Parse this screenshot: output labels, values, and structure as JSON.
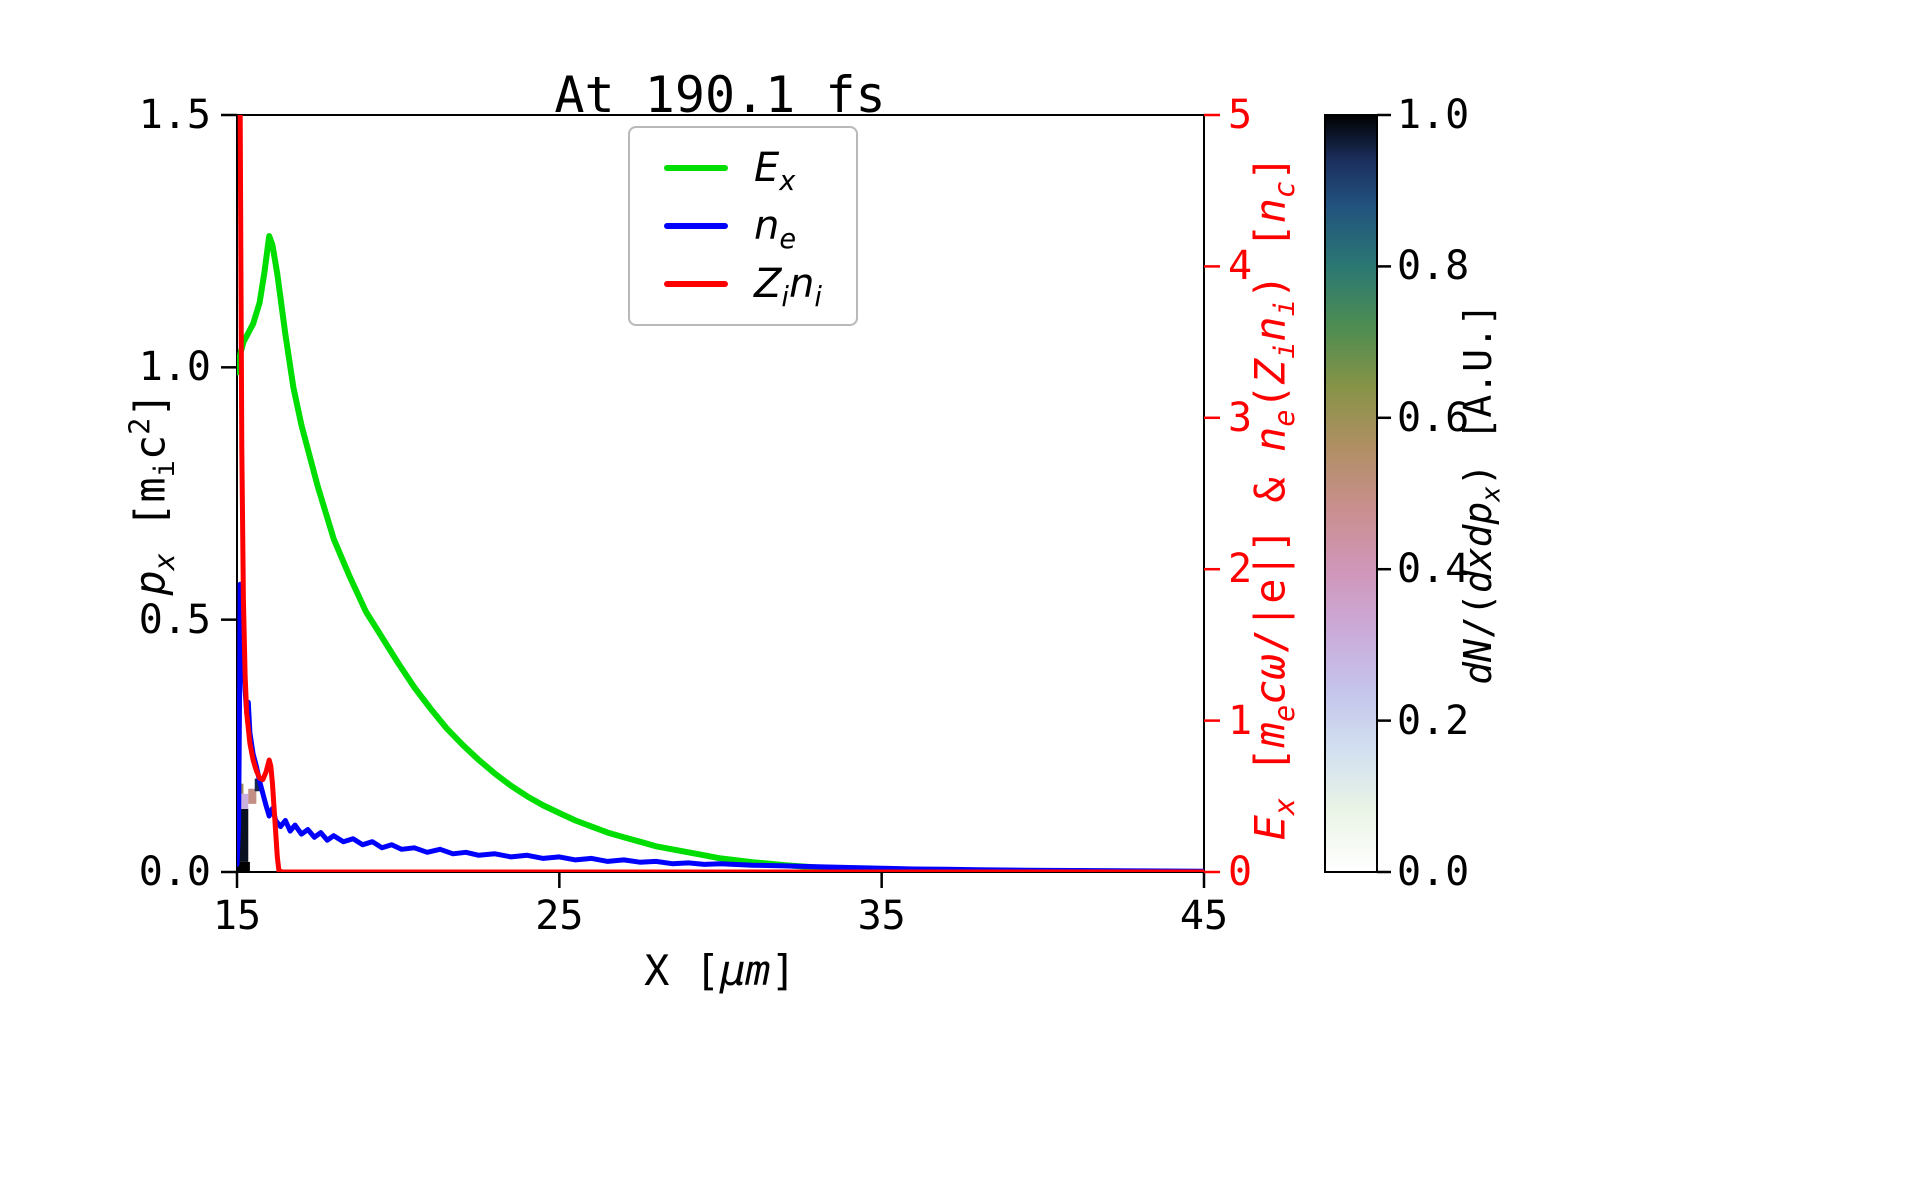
{
  "chart_data": {
    "type": "line",
    "title": "At 190.1 fs",
    "xlabel": "X [*μm*]",
    "ylabel_left": "*p_{x}* [m_{i}c^{2}]",
    "ylabel_right": "*E_{x}* [*m_{e}cω*/|e|] & *n_{e}*(*Z_{i}n_{i}*) [*n_{c}*]",
    "colorbar_label": "*dN*/(*dxdp_{x}*) [A.U.]",
    "x_range": [
      15,
      45
    ],
    "y_left_range": [
      0,
      1.5
    ],
    "y_right_range": [
      0,
      5
    ],
    "grid": false,
    "legend_position": "upper center",
    "right_axis_color": "#ff0000",
    "x_ticks": {
      "values": [
        15,
        25,
        35,
        45
      ],
      "labels": [
        "15",
        "25",
        "35",
        "45"
      ]
    },
    "y_left_ticks": {
      "values": [
        0,
        0.5,
        1.0,
        1.5
      ],
      "labels": [
        "0.0",
        "0.5",
        "1.0",
        "1.5"
      ]
    },
    "y_right_ticks": {
      "values": [
        0,
        1,
        2,
        3,
        4,
        5
      ],
      "labels": [
        "0",
        "1",
        "2",
        "3",
        "4",
        "5"
      ]
    },
    "colorbar_ticks": {
      "values": [
        0,
        0.2,
        0.4,
        0.6,
        0.8,
        1.0
      ],
      "labels": [
        "0.0",
        "0.2",
        "0.4",
        "0.6",
        "0.8",
        "1.0"
      ]
    },
    "series": [
      {
        "name": "E_x",
        "label": "*E_{x}*",
        "color": "#00dd00",
        "width": 6,
        "axis": "right",
        "points": [
          [
            15.0,
            3.3
          ],
          [
            15.1,
            3.42
          ],
          [
            15.2,
            3.5
          ],
          [
            15.35,
            3.56
          ],
          [
            15.5,
            3.62
          ],
          [
            15.7,
            3.76
          ],
          [
            15.85,
            3.96
          ],
          [
            16.0,
            4.2
          ],
          [
            16.1,
            4.14
          ],
          [
            16.25,
            3.95
          ],
          [
            16.5,
            3.55
          ],
          [
            16.75,
            3.2
          ],
          [
            17.0,
            2.95
          ],
          [
            17.5,
            2.55
          ],
          [
            18.0,
            2.2
          ],
          [
            18.5,
            1.95
          ],
          [
            19.0,
            1.72
          ],
          [
            19.5,
            1.55
          ],
          [
            20.0,
            1.38
          ],
          [
            20.5,
            1.22
          ],
          [
            21.0,
            1.08
          ],
          [
            21.5,
            0.95
          ],
          [
            22.0,
            0.84
          ],
          [
            22.5,
            0.74
          ],
          [
            23.0,
            0.65
          ],
          [
            23.5,
            0.57
          ],
          [
            24.0,
            0.5
          ],
          [
            24.5,
            0.44
          ],
          [
            25.0,
            0.39
          ],
          [
            25.5,
            0.34
          ],
          [
            26.0,
            0.3
          ],
          [
            26.5,
            0.26
          ],
          [
            27.0,
            0.23
          ],
          [
            27.5,
            0.2
          ],
          [
            28.0,
            0.17
          ],
          [
            28.5,
            0.15
          ],
          [
            29.0,
            0.13
          ],
          [
            29.5,
            0.11
          ],
          [
            30.0,
            0.09
          ],
          [
            31.0,
            0.065
          ],
          [
            32.0,
            0.045
          ],
          [
            33.0,
            0.03
          ],
          [
            34.0,
            0.02
          ],
          [
            35.0,
            0.013
          ],
          [
            36.0,
            0.008
          ],
          [
            38.0,
            0.004
          ],
          [
            40.0,
            0.002
          ],
          [
            42.0,
            0.001
          ],
          [
            45.0,
            0.0
          ]
        ]
      },
      {
        "name": "n_e",
        "label": "*n_{e}*",
        "color": "#0000ff",
        "width": 5,
        "axis": "right",
        "points": [
          [
            15.0,
            0.05
          ],
          [
            15.05,
            0.3
          ],
          [
            15.08,
            1.2
          ],
          [
            15.1,
            1.9
          ],
          [
            15.12,
            1.55
          ],
          [
            15.15,
            1.35
          ],
          [
            15.2,
            1.42
          ],
          [
            15.25,
            1.2
          ],
          [
            15.3,
            1.05
          ],
          [
            15.35,
            1.12
          ],
          [
            15.4,
            0.92
          ],
          [
            15.5,
            0.78
          ],
          [
            15.6,
            0.7
          ],
          [
            15.7,
            0.6
          ],
          [
            15.8,
            0.52
          ],
          [
            15.9,
            0.44
          ],
          [
            16.0,
            0.37
          ],
          [
            16.1,
            0.42
          ],
          [
            16.2,
            0.34
          ],
          [
            16.35,
            0.3
          ],
          [
            16.5,
            0.34
          ],
          [
            16.65,
            0.27
          ],
          [
            16.8,
            0.31
          ],
          [
            17.0,
            0.25
          ],
          [
            17.2,
            0.28
          ],
          [
            17.4,
            0.23
          ],
          [
            17.6,
            0.26
          ],
          [
            17.8,
            0.21
          ],
          [
            18.0,
            0.24
          ],
          [
            18.3,
            0.2
          ],
          [
            18.6,
            0.22
          ],
          [
            18.9,
            0.18
          ],
          [
            19.2,
            0.2
          ],
          [
            19.5,
            0.16
          ],
          [
            19.8,
            0.18
          ],
          [
            20.1,
            0.15
          ],
          [
            20.5,
            0.16
          ],
          [
            20.9,
            0.13
          ],
          [
            21.3,
            0.15
          ],
          [
            21.7,
            0.12
          ],
          [
            22.1,
            0.13
          ],
          [
            22.5,
            0.11
          ],
          [
            23.0,
            0.12
          ],
          [
            23.5,
            0.1
          ],
          [
            24.0,
            0.11
          ],
          [
            24.5,
            0.09
          ],
          [
            25.0,
            0.1
          ],
          [
            25.5,
            0.08
          ],
          [
            26.0,
            0.09
          ],
          [
            26.5,
            0.07
          ],
          [
            27.0,
            0.08
          ],
          [
            27.5,
            0.065
          ],
          [
            28.0,
            0.07
          ],
          [
            28.5,
            0.055
          ],
          [
            29.0,
            0.06
          ],
          [
            29.5,
            0.05
          ],
          [
            30.0,
            0.055
          ],
          [
            31.0,
            0.045
          ],
          [
            32.0,
            0.04
          ],
          [
            33.0,
            0.035
          ],
          [
            34.0,
            0.03
          ],
          [
            35.0,
            0.025
          ],
          [
            36.0,
            0.02
          ],
          [
            37.0,
            0.018
          ],
          [
            38.0,
            0.015
          ],
          [
            39.5,
            0.012
          ],
          [
            41.0,
            0.01
          ],
          [
            43.0,
            0.007
          ],
          [
            45.0,
            0.005
          ]
        ]
      },
      {
        "name": "Z_i n_i",
        "label": "*Z_{i}n_{i}*",
        "color": "#ff0000",
        "width": 5,
        "axis": "right",
        "points": [
          [
            15.1,
            5.0
          ],
          [
            15.12,
            4.0
          ],
          [
            15.15,
            2.8
          ],
          [
            15.2,
            1.8
          ],
          [
            15.25,
            1.3
          ],
          [
            15.3,
            1.05
          ],
          [
            15.4,
            0.85
          ],
          [
            15.5,
            0.74
          ],
          [
            15.6,
            0.67
          ],
          [
            15.7,
            0.62
          ],
          [
            15.8,
            0.61
          ],
          [
            15.9,
            0.66
          ],
          [
            16.0,
            0.74
          ],
          [
            16.05,
            0.7
          ],
          [
            16.1,
            0.58
          ],
          [
            16.15,
            0.42
          ],
          [
            16.2,
            0.26
          ],
          [
            16.25,
            0.1
          ],
          [
            16.3,
            0.01
          ],
          [
            16.4,
            0.0
          ],
          [
            45.0,
            0.0
          ]
        ]
      }
    ],
    "histogram2d": {
      "quantity": "dN/(dxdp_x)",
      "units": "A.U.",
      "axis": "left",
      "value_range": [
        0,
        1
      ],
      "cells": [
        [
          15.0,
          15.4,
          0.0,
          0.02,
          1.0
        ],
        [
          15.0,
          15.35,
          0.02,
          0.125,
          0.98
        ],
        [
          15.0,
          15.35,
          0.125,
          0.155,
          0.3
        ],
        [
          15.35,
          15.6,
          0.135,
          0.165,
          0.5
        ],
        [
          15.55,
          15.75,
          0.16,
          0.185,
          0.95
        ],
        [
          15.0,
          15.2,
          0.155,
          0.175,
          0.6
        ]
      ]
    },
    "colormap_stops": [
      {
        "v": 0.0,
        "c": "#ffffff"
      },
      {
        "v": 0.08,
        "c": "#eaf4e6"
      },
      {
        "v": 0.16,
        "c": "#d2e0f0"
      },
      {
        "v": 0.24,
        "c": "#c5c4ec"
      },
      {
        "v": 0.32,
        "c": "#cbaad8"
      },
      {
        "v": 0.4,
        "c": "#d096b8"
      },
      {
        "v": 0.48,
        "c": "#c98f8e"
      },
      {
        "v": 0.56,
        "c": "#b08f64"
      },
      {
        "v": 0.64,
        "c": "#879347"
      },
      {
        "v": 0.72,
        "c": "#4e8d52"
      },
      {
        "v": 0.8,
        "c": "#2b7873"
      },
      {
        "v": 0.88,
        "c": "#22527e"
      },
      {
        "v": 0.94,
        "c": "#1b2f5e"
      },
      {
        "v": 1.0,
        "c": "#000000"
      }
    ]
  }
}
